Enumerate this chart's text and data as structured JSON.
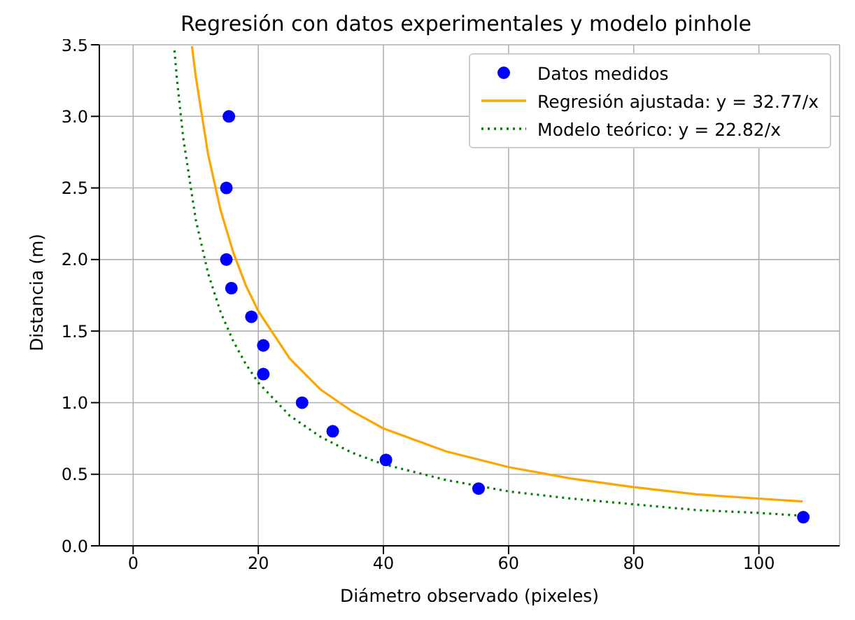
{
  "chart_data": {
    "type": "scatter",
    "title": "Regresión con datos experimentales y modelo pinhole",
    "xlabel": "Diámetro observado (pixeles)",
    "ylabel": "Distancia (m)",
    "xlim": [
      -5.4,
      112.9
    ],
    "ylim": [
      0,
      3.5
    ],
    "xticks": [
      0,
      20,
      40,
      60,
      80,
      100
    ],
    "yticks": [
      {
        "value": 0,
        "label": "0.0"
      },
      {
        "value": 0.5,
        "label": "0.5"
      },
      {
        "value": 1,
        "label": "1.0"
      },
      {
        "value": 1.5,
        "label": "1.5"
      },
      {
        "value": 2,
        "label": "2.0"
      },
      {
        "value": 2.5,
        "label": "2.5"
      },
      {
        "value": 3,
        "label": "3.0"
      },
      {
        "value": 3.5,
        "label": "3.5"
      }
    ],
    "grid": true,
    "legend": "top right",
    "series": [
      {
        "name": "Datos medidos",
        "type": "scatter",
        "marker": "circle",
        "color": "#0000ff",
        "x": [
          15.3,
          14.9,
          14.9,
          15.7,
          18.9,
          20.8,
          20.8,
          27.0,
          31.9,
          40.4,
          55.2,
          107.1
        ],
        "values": [
          3.0,
          2.5,
          2.0,
          1.8,
          1.6,
          1.4,
          1.2,
          1.0,
          0.8,
          0.6,
          0.4,
          0.2
        ]
      },
      {
        "name": "Regresión ajustada: y = 32.77/x",
        "type": "line",
        "marker": "none",
        "line_style": "solid",
        "color": "#ffa500",
        "x": [
          9.4,
          10,
          12,
          14,
          16,
          18,
          20,
          25,
          30,
          35,
          40,
          50,
          60,
          70,
          80,
          90,
          100,
          107
        ],
        "values": [
          3.49,
          3.28,
          2.73,
          2.34,
          2.05,
          1.82,
          1.64,
          1.31,
          1.09,
          0.94,
          0.82,
          0.66,
          0.55,
          0.47,
          0.41,
          0.36,
          0.33,
          0.31
        ]
      },
      {
        "name": "Modelo teórico: y = 22.82/x",
        "type": "line",
        "marker": "none",
        "line_style": "dotted",
        "color": "#008000",
        "x": [
          6.6,
          7,
          8,
          10,
          12,
          14,
          16,
          18,
          20,
          25,
          30,
          35,
          40,
          50,
          60,
          70,
          80,
          90,
          100,
          107
        ],
        "values": [
          3.46,
          3.26,
          2.85,
          2.28,
          1.9,
          1.63,
          1.43,
          1.27,
          1.14,
          0.91,
          0.76,
          0.65,
          0.57,
          0.46,
          0.38,
          0.33,
          0.29,
          0.25,
          0.23,
          0.21
        ]
      }
    ]
  }
}
